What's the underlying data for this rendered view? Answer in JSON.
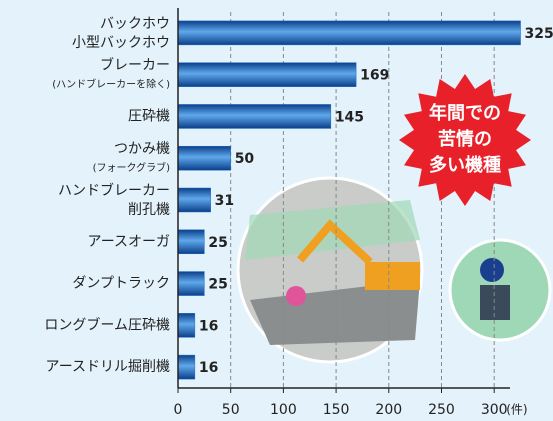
{
  "chart_data": {
    "type": "bar",
    "orientation": "horizontal",
    "categories": [
      [
        "バックホウ",
        "小型バックホウ"
      ],
      [
        "ブレーカー",
        "(ハンドブレーカーを除く)"
      ],
      [
        "圧砕機"
      ],
      [
        "つかみ機",
        "(フォークグラブ)"
      ],
      [
        "ハンドブレーカー",
        "削孔機"
      ],
      [
        "アースオーガ"
      ],
      [
        "ダンプトラック"
      ],
      [
        "ロングブーム圧砕機"
      ],
      [
        "アースドリル掘削機"
      ]
    ],
    "values": [
      325,
      169,
      145,
      50,
      31,
      25,
      25,
      16,
      16
    ],
    "color": "#1f6fc4",
    "xlim": [
      0,
      315
    ],
    "xticks": [
      0,
      50,
      100,
      150,
      200,
      250,
      300
    ],
    "x_unit": "(件)",
    "grid": true,
    "annotation": [
      "年間での",
      "苦情の",
      "多い機種"
    ]
  }
}
